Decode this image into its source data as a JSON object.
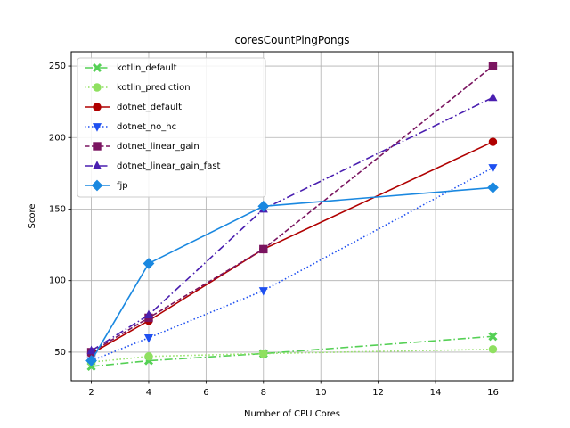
{
  "chart_data": {
    "type": "line",
    "title": "coresCountPingPongs",
    "xlabel": "Number of CPU Cores",
    "ylabel": "Score",
    "xlim": [
      1.3,
      16.7
    ],
    "ylim": [
      30,
      260
    ],
    "xticks": [
      2,
      4,
      6,
      8,
      10,
      12,
      14,
      16
    ],
    "xtick_labels": [
      "2",
      "4",
      "6",
      "8",
      "10",
      "12",
      "14",
      "16"
    ],
    "yticks": [
      50,
      100,
      150,
      200,
      250
    ],
    "ytick_labels": [
      "50",
      "100",
      "150",
      "200",
      "250"
    ],
    "grid": true,
    "legend_position": "top-left",
    "x": [
      2,
      4,
      8,
      16
    ],
    "series": [
      {
        "name": "kotlin_default",
        "values": [
          40,
          44,
          49,
          61
        ],
        "color": "#55d055",
        "dash": "dashdot",
        "marker": "x"
      },
      {
        "name": "kotlin_prediction",
        "values": [
          43,
          47,
          49,
          52
        ],
        "color": "#8fe060",
        "dash": "dotted",
        "marker": "circle"
      },
      {
        "name": "dotnet_default",
        "values": [
          49,
          72,
          122,
          197
        ],
        "color": "#b00000",
        "dash": "solid",
        "marker": "circle"
      },
      {
        "name": "dotnet_no_hc",
        "values": [
          44,
          60,
          93,
          179
        ],
        "color": "#1f50f0",
        "dash": "dotted",
        "marker": "triangle-down"
      },
      {
        "name": "dotnet_linear_gain",
        "values": [
          50,
          74,
          122,
          250
        ],
        "color": "#7a1560",
        "dash": "dashed",
        "marker": "square"
      },
      {
        "name": "dotnet_linear_gain_fast",
        "values": [
          51,
          76,
          150,
          228
        ],
        "color": "#4a1fb0",
        "dash": "dashdot",
        "marker": "triangle-up"
      },
      {
        "name": "fjp",
        "values": [
          44,
          112,
          152,
          165
        ],
        "color": "#1a88e0",
        "dash": "solid",
        "marker": "diamond"
      }
    ]
  }
}
